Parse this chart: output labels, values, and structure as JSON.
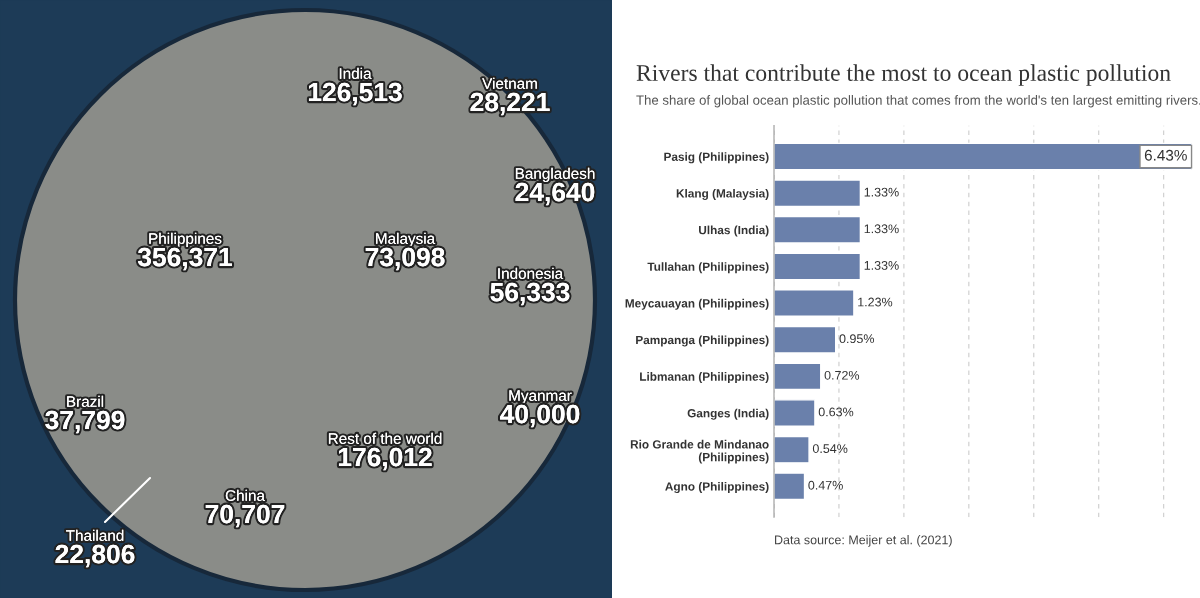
{
  "chart_data": [
    {
      "type": "other",
      "categories": [
        "Philippines",
        "Rest of the world",
        "India",
        "Malaysia",
        "China",
        "Indonesia",
        "Myanmar",
        "Brazil",
        "Vietnam",
        "Bangladesh",
        "Thailand"
      ],
      "values": [
        356371,
        176012,
        126513,
        73098,
        70707,
        56333,
        40000,
        37799,
        28221,
        24640,
        22806
      ],
      "value_labels": [
        "356,371",
        "176,012",
        "126,513",
        "73,098",
        "70,707",
        "56,333",
        "40,000",
        "37,799",
        "28,221",
        "24,640",
        "22,806"
      ],
      "color": "#8a8c88"
    },
    {
      "type": "bar",
      "orientation": "horizontal",
      "title": "Rivers that contribute the most to ocean plastic pollution",
      "subtitle": "The share of global ocean plastic pollution that comes from the world's ten largest emitting rivers.",
      "categories": [
        "Pasig (Philippines)",
        "Klang (Malaysia)",
        "Ulhas (India)",
        "Tullahan (Philippines)",
        "Meycauayan (Philippines)",
        "Pampanga (Philippines)",
        "Libmanan (Philippines)",
        "Ganges (India)",
        "Rio Grande de Mindanao (Philippines)",
        "Agno (Philippines)"
      ],
      "values": [
        6.43,
        1.33,
        1.33,
        1.33,
        1.23,
        0.95,
        0.72,
        0.63,
        0.54,
        0.47
      ],
      "value_labels": [
        "6.43%",
        "1.33%",
        "1.33%",
        "1.33%",
        "1.23%",
        "0.95%",
        "0.72%",
        "0.63%",
        "0.54%",
        "0.47%"
      ],
      "color": "#6a80ab",
      "xlim": [
        0,
        6.43
      ],
      "xticks": [
        {
          "value": 0,
          "label": null
        },
        {
          "value": 1,
          "label": null
        },
        {
          "value": 2,
          "label": null
        },
        {
          "value": 3,
          "label": null
        },
        {
          "value": 4,
          "label": null
        },
        {
          "value": 5,
          "label": null
        },
        {
          "value": 6,
          "label": null
        }
      ],
      "grid": "x",
      "tick_labels": "y",
      "annotations": [
        "Data source: Meijer et al. (2021)"
      ]
    }
  ]
}
